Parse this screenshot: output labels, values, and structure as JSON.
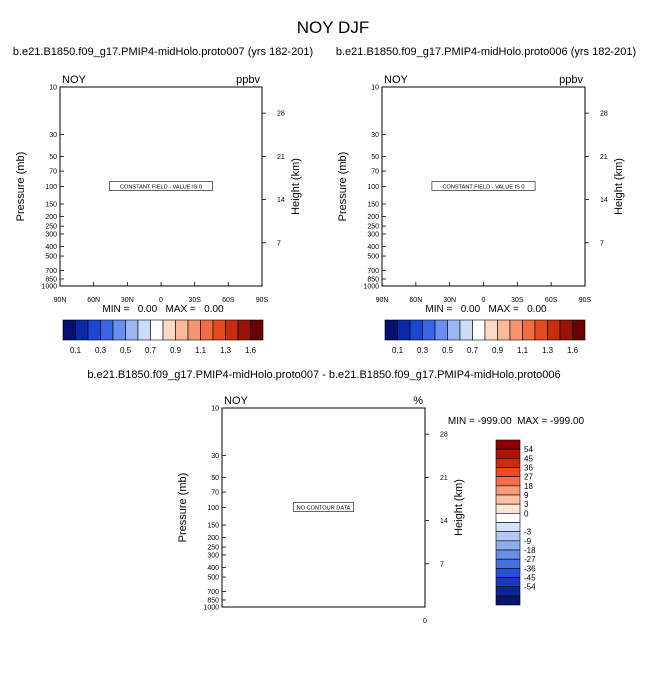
{
  "title": "NOY DJF",
  "colors": {
    "blues": [
      "#08106f",
      "#0b2aa6",
      "#1c47d0",
      "#3a66e6",
      "#6a8ff0",
      "#9cb6f4",
      "#ccdcf7"
    ],
    "white": "#ffffff",
    "reds": [
      "#fcd9c3",
      "#f9b99a",
      "#f59471",
      "#f06c45",
      "#e24a1f",
      "#c62e12",
      "#9a1307",
      "#6b0000"
    ],
    "diff_colors": [
      "#8e0000",
      "#b4100a",
      "#d22a10",
      "#ec4a20",
      "#f56f4a",
      "#f99a78",
      "#fbc3a6",
      "#fde3d2",
      "#ffffff",
      "#d4e2f8",
      "#b2c8f4",
      "#8fadee",
      "#6a8fe9",
      "#4771e0",
      "#2653d6",
      "#1a3ab9",
      "#0c2494",
      "#06146a"
    ]
  },
  "chart_data": [
    {
      "type": "heatmap",
      "subtitle": "b.e21.B1850.f09_g17.PMIP4-midHolo.proto007 (yrs 182-201)",
      "left_label": "NOY",
      "right_label": "ppbv",
      "ylabel": "Pressure (mb)",
      "ylabel_right": "Height (km)",
      "yticks": [
        "10",
        "30",
        "50",
        "70",
        "100",
        "150",
        "200",
        "250",
        "300",
        "400",
        "500",
        "700",
        "850",
        "1000"
      ],
      "yticks_right": [
        "28",
        "21",
        "14",
        "7"
      ],
      "xticks": [
        "90N",
        "60N",
        "30N",
        "0",
        "30S",
        "60S",
        "90S"
      ],
      "annotation": "CONSTANT FIELD - VALUE IS 0",
      "min_text": "MIN =   0.00   MAX =   0.00",
      "colorbar_labels": [
        "0.1",
        "0.3",
        "0.5",
        "0.7",
        "0.9",
        "1.1",
        "1.3",
        "1.6"
      ]
    },
    {
      "type": "heatmap",
      "subtitle": "b.e21.B1850.f09_g17.PMIP4-midHolo.proto006 (yrs 182-201)",
      "left_label": "NOY",
      "right_label": "ppbv",
      "ylabel": "Pressure (mb)",
      "ylabel_right": "Height (km)",
      "yticks": [
        "10",
        "30",
        "50",
        "70",
        "100",
        "150",
        "200",
        "250",
        "300",
        "400",
        "500",
        "700",
        "850",
        "1000"
      ],
      "yticks_right": [
        "28",
        "21",
        "14",
        "7"
      ],
      "xticks": [
        "90N",
        "60N",
        "30N",
        "0",
        "30S",
        "60S",
        "90S"
      ],
      "annotation": "CONSTANT FIELD - VALUE IS 0",
      "min_text": "MIN =   0.00   MAX =   0.00",
      "colorbar_labels": [
        "0.1",
        "0.3",
        "0.5",
        "0.7",
        "0.9",
        "1.1",
        "1.3",
        "1.6"
      ]
    },
    {
      "type": "heatmap",
      "subtitle": "b.e21.B1850.f09_g17.PMIP4-midHolo.proto007 - b.e21.B1850.f09_g17.PMIP4-midHolo.proto006",
      "left_label": "NOY",
      "right_label": "%",
      "ylabel": "Pressure (mb)",
      "ylabel_right": "Height (km)",
      "yticks": [
        "10",
        "30",
        "50",
        "70",
        "100",
        "150",
        "200",
        "250",
        "300",
        "400",
        "500",
        "700",
        "850",
        "1000"
      ],
      "yticks_right": [
        "28",
        "21",
        "14",
        "7"
      ],
      "xticks": [
        "0"
      ],
      "annotation": "NO CONTOUR DATA",
      "min_text": "MIN = -999.00  MAX = -999.00",
      "colorbar_labels": [
        "54",
        "45",
        "36",
        "27",
        "18",
        "9",
        "3",
        "0",
        "-3",
        "-9",
        "-18",
        "-27",
        "-36",
        "-45",
        "-54"
      ]
    }
  ]
}
